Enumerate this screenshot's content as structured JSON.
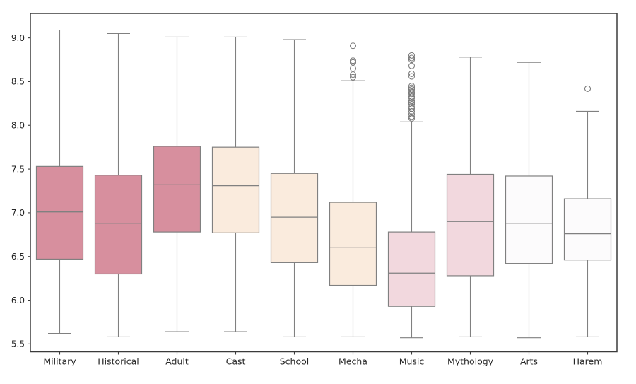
{
  "chart_data": {
    "type": "box",
    "title": "",
    "xlabel": "",
    "ylabel": "",
    "grid": false,
    "legend": null,
    "ylim": [
      5.41,
      9.28
    ],
    "yticks": [
      5.5,
      6.0,
      6.5,
      7.0,
      7.5,
      8.0,
      8.5,
      9.0
    ],
    "ytick_labels": [
      "5.5",
      "6.0",
      "6.5",
      "7.0",
      "7.5",
      "8.0",
      "8.5",
      "9.0"
    ],
    "categories": [
      "Military",
      "Historical",
      "Adult",
      "Cast",
      "School",
      "Mecha",
      "Music",
      "Mythology",
      "Arts",
      "Harem"
    ],
    "series": [
      {
        "label": "Military",
        "whislo": 5.62,
        "q1": 6.47,
        "med": 7.01,
        "q3": 7.53,
        "whishi": 9.09,
        "fliers": [],
        "fill_color": "#d78f9e"
      },
      {
        "label": "Historical",
        "whislo": 5.58,
        "q1": 6.3,
        "med": 6.88,
        "q3": 7.43,
        "whishi": 9.05,
        "fliers": [],
        "fill_color": "#d78f9e"
      },
      {
        "label": "Adult",
        "whislo": 5.64,
        "q1": 6.78,
        "med": 7.32,
        "q3": 7.76,
        "whishi": 9.01,
        "fliers": [],
        "fill_color": "#d78f9e"
      },
      {
        "label": "Cast",
        "whislo": 5.64,
        "q1": 6.77,
        "med": 7.31,
        "q3": 7.75,
        "whishi": 9.01,
        "fliers": [],
        "fill_color": "#faebdd"
      },
      {
        "label": "School",
        "whislo": 5.58,
        "q1": 6.43,
        "med": 6.95,
        "q3": 7.45,
        "whishi": 8.98,
        "fliers": [],
        "fill_color": "#faebdd"
      },
      {
        "label": "Mecha",
        "whislo": 5.58,
        "q1": 6.17,
        "med": 6.6,
        "q3": 7.12,
        "whishi": 8.51,
        "fliers": [
          8.91,
          8.74,
          8.72,
          8.65,
          8.58,
          8.55
        ],
        "fill_color": "#faebdd"
      },
      {
        "label": "Music",
        "whislo": 5.57,
        "q1": 5.93,
        "med": 6.31,
        "q3": 6.78,
        "whishi": 8.04,
        "fliers": [
          8.8,
          8.77,
          8.75,
          8.68,
          8.59,
          8.56,
          8.45,
          8.43,
          8.41,
          8.38,
          8.36,
          8.33,
          8.31,
          8.28,
          8.26,
          8.24,
          8.21,
          8.19,
          8.16,
          8.13,
          8.1,
          8.08
        ],
        "fill_color": "#f2d8de"
      },
      {
        "label": "Mythology",
        "whislo": 5.58,
        "q1": 6.28,
        "med": 6.9,
        "q3": 7.44,
        "whishi": 8.78,
        "fliers": [],
        "fill_color": "#f2d8de"
      },
      {
        "label": "Arts",
        "whislo": 5.57,
        "q1": 6.42,
        "med": 6.88,
        "q3": 7.42,
        "whishi": 8.72,
        "fliers": [],
        "fill_color": "#fcfbfc"
      },
      {
        "label": "Harem",
        "whislo": 5.58,
        "q1": 6.46,
        "med": 6.76,
        "q3": 7.16,
        "whishi": 8.16,
        "fliers": [
          8.42
        ],
        "fill_color": "#fcfbfc"
      }
    ],
    "style_colors": {
      "box_edge": "#808080",
      "median_line": "#808080",
      "whisker": "#808080",
      "flier_stroke": "#757575",
      "spine": "#3b3b3b",
      "tick": "#3b3b3b",
      "tick_label": "#262626",
      "background": "#ffffff"
    }
  }
}
